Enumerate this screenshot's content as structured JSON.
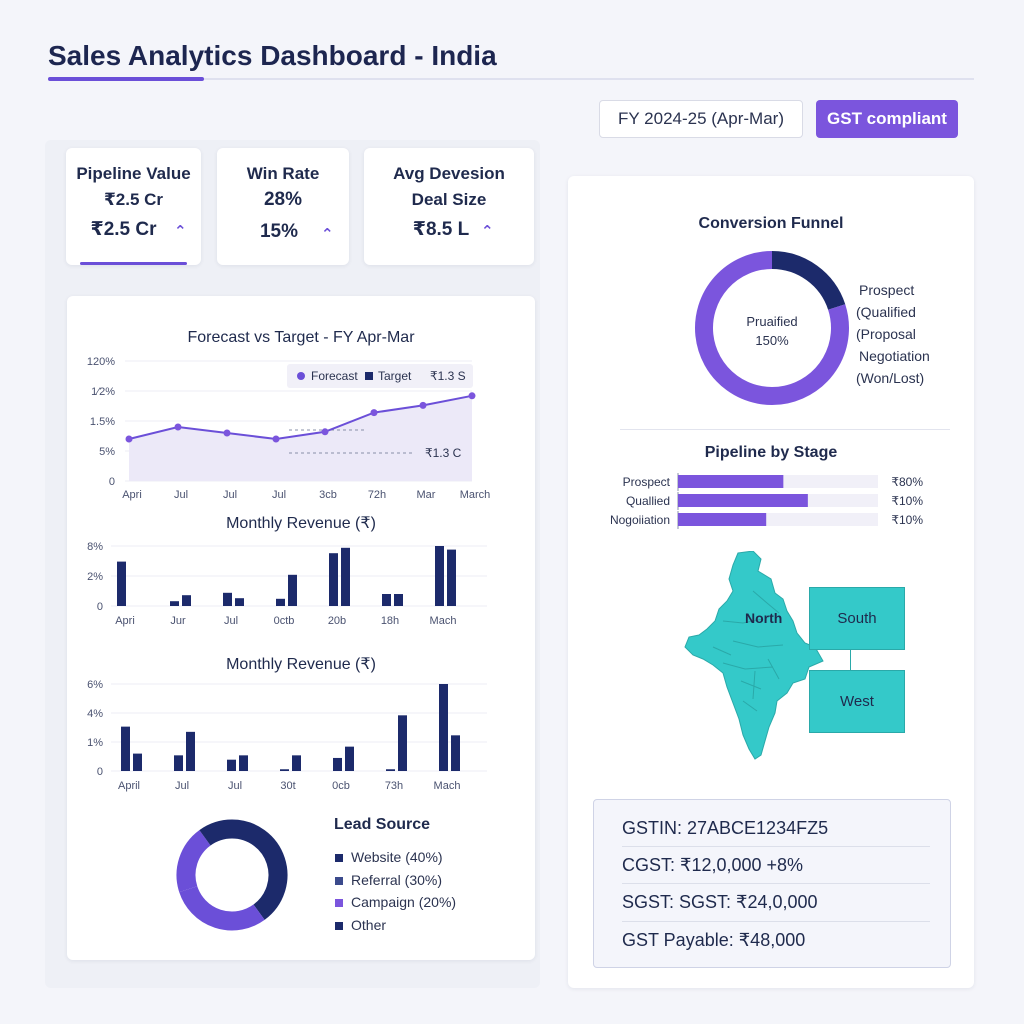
{
  "header": {
    "title": "Sales Analytics Dashboard - India",
    "fiscal_year": "FY 2024-25 (Apr-Mar)",
    "gst_button": "GST compliant"
  },
  "kpis": [
    {
      "label": "Pipeline Value",
      "value1": "₹2.5 Cr",
      "value2": "₹2.5 Cr"
    },
    {
      "label": "Win Rate",
      "value1": "28%",
      "value2": "15%"
    },
    {
      "label1": "Avg Devesion",
      "label2": "Deal Size",
      "value2": "₹8.5 L"
    }
  ],
  "colors": {
    "accent": "#7b55dd",
    "navy": "#1c2a6b",
    "teal": "#34c9c9"
  },
  "forecast": {
    "title": "Forecast vs Target - FY Apr-Mar",
    "y_ticks": [
      "120%",
      "1⁄2%",
      "1.5%",
      "5%",
      "0"
    ],
    "x_ticks": [
      "Apri",
      "Jul",
      "Jul",
      "Jul",
      "3cb",
      "72h",
      "Mar",
      "March"
    ],
    "legend_forecast": "Forecast",
    "legend_target": "Target",
    "legend_value": "₹1.3 S",
    "target_label": "₹1.3 C"
  },
  "revenue1": {
    "title": "Monthly Revenue (₹)",
    "y_ticks": [
      "8%",
      "2%",
      "0"
    ],
    "x_ticks": [
      "Apri",
      "Jur",
      "Jul",
      "0ctb",
      "20b",
      "18h",
      "Mach"
    ]
  },
  "revenue2": {
    "title": "Monthly Revenue (₹)",
    "y_ticks": [
      "6%",
      "4%",
      "1%",
      "0"
    ],
    "x_ticks": [
      "April",
      "Jul",
      "Jul",
      "30t",
      "0cb",
      "73h",
      "Mach"
    ]
  },
  "lead_source": {
    "title": "Lead Source",
    "items": [
      "Website (40%)",
      "Referral (30%)",
      "Campaign (20%)",
      "Other"
    ]
  },
  "funnel": {
    "title": "Conversion Funnel",
    "center_label": "Pruaified",
    "center_value": "150%",
    "legend": [
      "Prospect",
      "(Qualified",
      "(Proposal",
      "Negotiation",
      "(Won/Lost)"
    ]
  },
  "pipeline": {
    "title": "Pipeline by Stage",
    "stages": [
      {
        "label": "Prospect",
        "value": "₹80%"
      },
      {
        "label": "Quallied",
        "value": "₹10%"
      },
      {
        "label": "Nogoiiation",
        "value": "₹10%"
      }
    ]
  },
  "map": {
    "north": "North",
    "south": "South",
    "west": "West"
  },
  "gst": {
    "gstin": "GSTIN: 27ABCE1234FZ5",
    "cgst": "CGST: ₹12,0,000  +8%",
    "sgst": "SGST: SGST: ₹24,0,000",
    "payable": "GST Payable: ₹48,000"
  },
  "chart_data": [
    {
      "type": "line",
      "title": "Forecast vs Target - FY Apr-Mar",
      "categories": [
        "Apri",
        "Jul",
        "Jul",
        "Jul",
        "3cb",
        "72h",
        "Mar",
        "March"
      ],
      "series": [
        {
          "name": "Forecast",
          "values": [
            0.35,
            0.45,
            0.4,
            0.35,
            0.41,
            0.57,
            0.63,
            0.71
          ]
        }
      ],
      "ylim": [
        0,
        1
      ]
    },
    {
      "type": "bar",
      "title": "Monthly Revenue (₹)",
      "categories": [
        "Apri",
        "Jur",
        "Jul",
        "0ctb",
        "20b",
        "18h",
        "Mach"
      ],
      "series": [
        {
          "values": [
            0.74,
            0.08,
            0.22,
            0.12,
            0.88,
            0.2,
            1.0
          ]
        },
        {
          "values": [
            0,
            0.18,
            0.13,
            0.52,
            0.97,
            0.2,
            0.94
          ]
        }
      ]
    },
    {
      "type": "bar",
      "title": "Monthly Revenue (₹)",
      "categories": [
        "April",
        "Jul",
        "Jul",
        "30t",
        "0cb",
        "73h",
        "Mach"
      ],
      "series": [
        {
          "values": [
            0.51,
            0.18,
            0.13,
            0.02,
            0.15,
            0.02,
            1.0
          ]
        },
        {
          "values": [
            0.2,
            0.45,
            0.18,
            0.18,
            0.28,
            0.64,
            0.41
          ]
        }
      ]
    },
    {
      "type": "pie",
      "title": "Lead Source",
      "categories": [
        "Website",
        "Referral",
        "Campaign",
        "Other"
      ],
      "values": [
        40,
        30,
        20,
        10
      ]
    },
    {
      "type": "pie",
      "title": "Conversion Funnel",
      "values": [
        20,
        80
      ]
    },
    {
      "type": "bar",
      "title": "Pipeline by Stage",
      "categories": [
        "Prospect",
        "Quallied",
        "Nogoiiation"
      ],
      "values": [
        0.43,
        0.53,
        0.36
      ]
    }
  ]
}
